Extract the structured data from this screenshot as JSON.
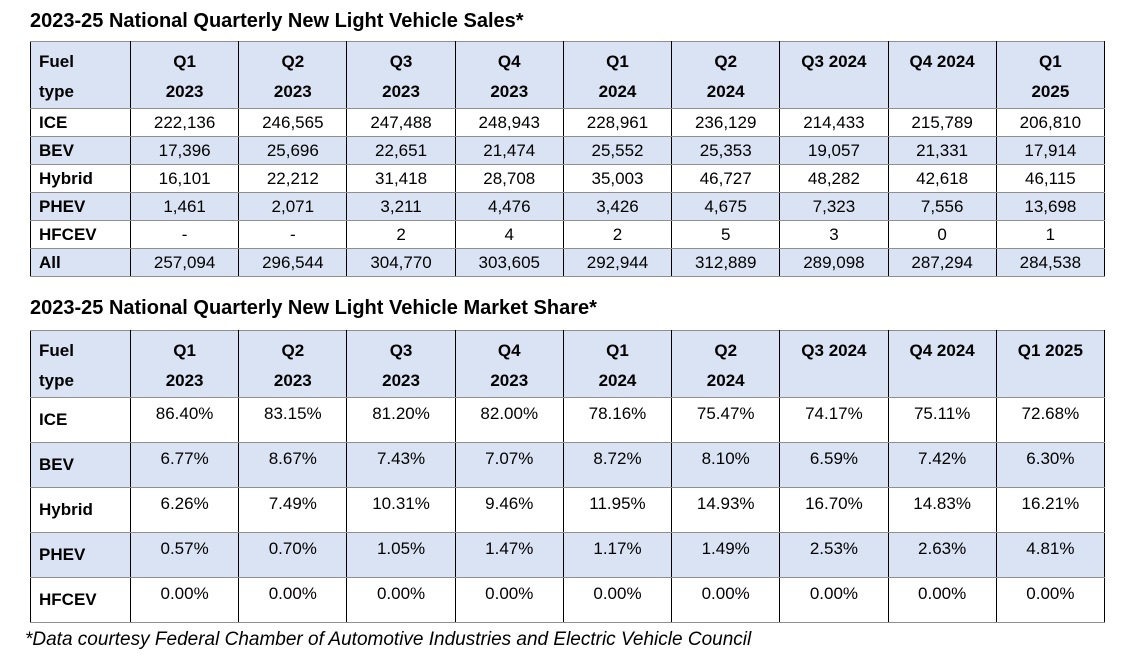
{
  "page": {
    "footnote": "*Data courtesy Federal Chamber of Automotive Industries and Electric Vehicle Council"
  },
  "colors": {
    "row_shade": "#dae3f3",
    "vertical_border": "#000000",
    "horizontal_border": "#8f8f8f"
  },
  "tables": [
    {
      "title": "2023-25 National Quarterly New Light Vehicle Sales*",
      "header": [
        [
          "Fuel",
          "type"
        ],
        [
          "Q1",
          "2023"
        ],
        [
          "Q2",
          "2023"
        ],
        [
          "Q3",
          "2023"
        ],
        [
          "Q4",
          "2023"
        ],
        [
          "Q1",
          "2024"
        ],
        [
          "Q2",
          "2024"
        ],
        [
          "Q3 2024"
        ],
        [
          "Q4 2024"
        ],
        [
          "Q1",
          "2025"
        ]
      ],
      "rows": [
        {
          "label": "ICE",
          "values": [
            "222,136",
            "246,565",
            "247,488",
            "248,943",
            "228,961",
            "236,129",
            "214,433",
            "215,789",
            "206,810"
          ]
        },
        {
          "label": "BEV",
          "values": [
            "17,396",
            "25,696",
            "22,651",
            "21,474",
            "25,552",
            "25,353",
            "19,057",
            "21,331",
            "17,914"
          ]
        },
        {
          "label": "Hybrid",
          "values": [
            "16,101",
            "22,212",
            "31,418",
            "28,708",
            "35,003",
            "46,727",
            "48,282",
            "42,618",
            "46,115"
          ]
        },
        {
          "label": "PHEV",
          "values": [
            "1,461",
            "2,071",
            "3,211",
            "4,476",
            "3,426",
            "4,675",
            "7,323",
            "7,556",
            "13,698"
          ]
        },
        {
          "label": "HFCEV",
          "values": [
            "-",
            "-",
            "2",
            "4",
            "2",
            "5",
            "3",
            "0",
            "1"
          ]
        },
        {
          "label": "All",
          "values": [
            "257,094",
            "296,544",
            "304,770",
            "303,605",
            "292,944",
            "312,889",
            "289,098",
            "287,294",
            "284,538"
          ]
        }
      ]
    },
    {
      "title": "2023-25 National Quarterly New Light Vehicle Market Share*",
      "header": [
        [
          "Fuel",
          "type"
        ],
        [
          "Q1",
          "2023"
        ],
        [
          "Q2",
          "2023"
        ],
        [
          "Q3",
          "2023"
        ],
        [
          "Q4",
          "2023"
        ],
        [
          "Q1",
          "2024"
        ],
        [
          "Q2",
          "2024"
        ],
        [
          "Q3 2024"
        ],
        [
          "Q4 2024"
        ],
        [
          "Q1 2025"
        ]
      ],
      "rows": [
        {
          "label": "ICE",
          "values": [
            "86.40%",
            "83.15%",
            "81.20%",
            "82.00%",
            "78.16%",
            "75.47%",
            "74.17%",
            "75.11%",
            "72.68%"
          ]
        },
        {
          "label": "BEV",
          "values": [
            "6.77%",
            "8.67%",
            "7.43%",
            "7.07%",
            "8.72%",
            "8.10%",
            "6.59%",
            "7.42%",
            "6.30%"
          ]
        },
        {
          "label": "Hybrid",
          "values": [
            "6.26%",
            "7.49%",
            "10.31%",
            "9.46%",
            "11.95%",
            "14.93%",
            "16.70%",
            "14.83%",
            "16.21%"
          ]
        },
        {
          "label": "PHEV",
          "values": [
            "0.57%",
            "0.70%",
            "1.05%",
            "1.47%",
            "1.17%",
            "1.49%",
            "2.53%",
            "2.63%",
            "4.81%"
          ]
        },
        {
          "label": "HFCEV",
          "values": [
            "0.00%",
            "0.00%",
            "0.00%",
            "0.00%",
            "0.00%",
            "0.00%",
            "0.00%",
            "0.00%",
            "0.00%"
          ]
        }
      ]
    }
  ]
}
